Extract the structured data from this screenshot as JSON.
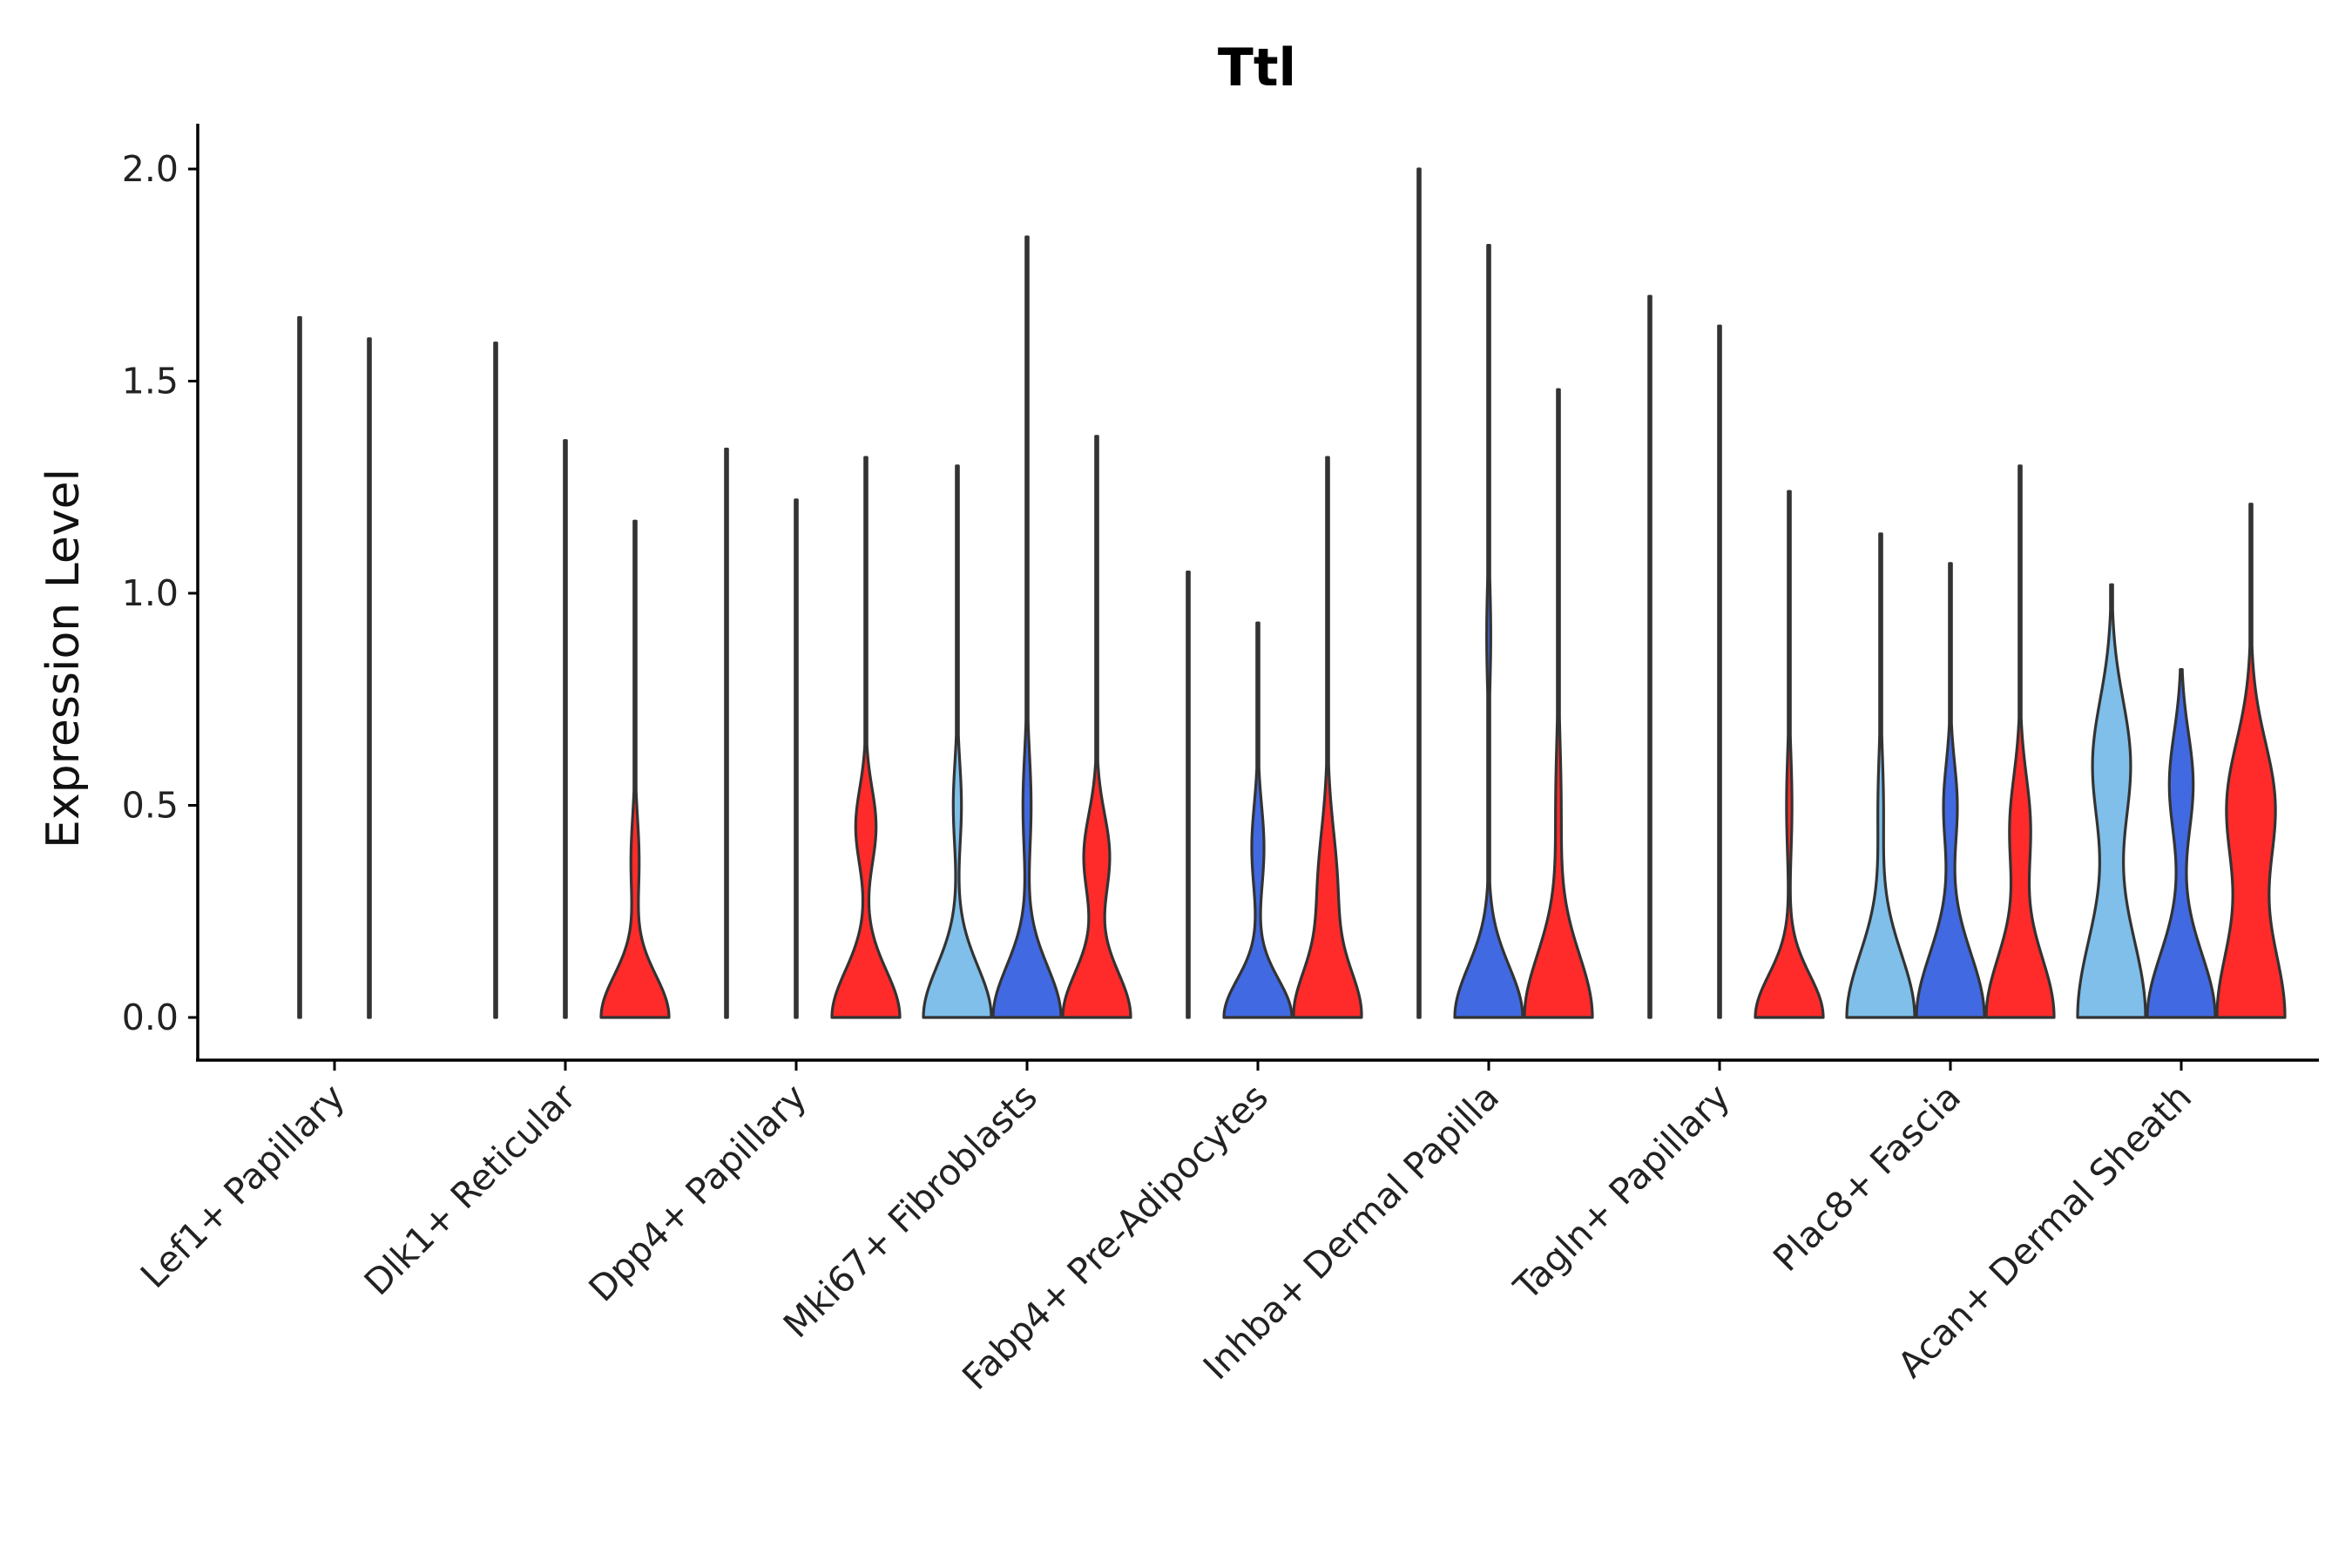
{
  "chart_data": {
    "type": "violin",
    "title": "Ttl",
    "xlabel": "",
    "ylabel": "Expression Level",
    "ylim": [
      -0.1,
      2.1
    ],
    "yticks": [
      "0.0",
      "0.5",
      "1.0",
      "1.5",
      "2.0"
    ],
    "grid": false,
    "legend": "none",
    "series_colors": [
      "#7fbfea",
      "#4169e1",
      "#ff2a2a"
    ],
    "categories": [
      {
        "label": "Lef1+ Papillary",
        "violins": [
          {
            "series": 0,
            "max": 1.65,
            "width": 0.03,
            "peaks": []
          },
          {
            "series": 1,
            "max": 1.6,
            "width": 0.03,
            "peaks": []
          }
        ]
      },
      {
        "label": "Dlk1+ Reticular",
        "violins": [
          {
            "series": 0,
            "max": 1.59,
            "width": 0.02,
            "peaks": []
          },
          {
            "series": 1,
            "max": 1.36,
            "width": 0.02,
            "peaks": []
          },
          {
            "series": 2,
            "max": 1.17,
            "width": 1.0,
            "peaks": [
              [
                0.0,
                0.1,
                1.0
              ],
              [
                0.37,
                0.1,
                0.12
              ]
            ]
          }
        ]
      },
      {
        "label": "Dpp4+ Papillary",
        "violins": [
          {
            "series": 0,
            "max": 1.34,
            "width": 0.02,
            "peaks": []
          },
          {
            "series": 1,
            "max": 1.22,
            "width": 0.02,
            "peaks": []
          },
          {
            "series": 2,
            "max": 1.32,
            "width": 1.0,
            "peaks": [
              [
                0.0,
                0.11,
                1.0
              ],
              [
                0.45,
                0.09,
                0.3
              ]
            ]
          }
        ]
      },
      {
        "label": "Mki67+ Fibroblasts",
        "violins": [
          {
            "series": 0,
            "max": 1.3,
            "width": 1.0,
            "peaks": [
              [
                0.0,
                0.12,
                1.0
              ],
              [
                0.5,
                0.1,
                0.12
              ]
            ]
          },
          {
            "series": 1,
            "max": 1.84,
            "width": 1.0,
            "peaks": [
              [
                0.0,
                0.12,
                1.0
              ],
              [
                0.5,
                0.12,
                0.12
              ]
            ]
          },
          {
            "series": 2,
            "max": 1.37,
            "width": 1.0,
            "peaks": [
              [
                0.0,
                0.11,
                1.0
              ],
              [
                0.38,
                0.1,
                0.38
              ]
            ]
          }
        ]
      },
      {
        "label": "Fabp4+ Pre-Adipocytes",
        "violins": [
          {
            "series": 0,
            "max": 1.05,
            "width": 0.02,
            "peaks": []
          },
          {
            "series": 1,
            "max": 0.93,
            "width": 1.0,
            "peaks": [
              [
                0.0,
                0.09,
                1.0
              ],
              [
                0.4,
                0.1,
                0.18
              ]
            ]
          },
          {
            "series": 2,
            "max": 1.32,
            "width": 1.0,
            "peaks": [
              [
                0.0,
                0.11,
                1.0
              ],
              [
                0.3,
                0.14,
                0.3
              ]
            ]
          }
        ]
      },
      {
        "label": "Inhba+ Dermal Papilla",
        "violins": [
          {
            "series": 0,
            "max": 2.0,
            "width": 0.02,
            "peaks": []
          },
          {
            "series": 1,
            "max": 1.82,
            "width": 1.0,
            "peaks": [
              [
                0.0,
                0.12,
                1.0
              ],
              [
                0.9,
                0.12,
                0.06
              ]
            ]
          },
          {
            "series": 2,
            "max": 1.48,
            "width": 1.0,
            "peaks": [
              [
                0.0,
                0.15,
                1.0
              ],
              [
                0.5,
                0.15,
                0.08
              ]
            ]
          }
        ]
      },
      {
        "label": "Tagln+ Papillary",
        "violins": [
          {
            "series": 0,
            "max": 1.7,
            "width": 0.02,
            "peaks": []
          },
          {
            "series": 1,
            "max": 1.63,
            "width": 0.02,
            "peaks": []
          },
          {
            "series": 2,
            "max": 1.24,
            "width": 1.0,
            "peaks": [
              [
                0.0,
                0.1,
                1.0
              ],
              [
                0.5,
                0.12,
                0.08
              ]
            ]
          }
        ]
      },
      {
        "label": "Plac8+ Fascia",
        "violins": [
          {
            "series": 0,
            "max": 1.14,
            "width": 1.0,
            "peaks": [
              [
                0.0,
                0.15,
                1.0
              ],
              [
                0.5,
                0.12,
                0.08
              ]
            ]
          },
          {
            "series": 1,
            "max": 1.07,
            "width": 1.0,
            "peaks": [
              [
                0.0,
                0.15,
                1.0
              ],
              [
                0.5,
                0.1,
                0.2
              ]
            ]
          },
          {
            "series": 2,
            "max": 1.3,
            "width": 1.0,
            "peaks": [
              [
                0.0,
                0.15,
                1.0
              ],
              [
                0.45,
                0.12,
                0.3
              ]
            ]
          }
        ]
      },
      {
        "label": "Acan+ Dermal Sheath",
        "violins": [
          {
            "series": 0,
            "max": 1.02,
            "width": 1.0,
            "peaks": [
              [
                0.0,
                0.2,
                1.0
              ],
              [
                0.6,
                0.15,
                0.55
              ]
            ]
          },
          {
            "series": 1,
            "max": 0.82,
            "width": 1.0,
            "peaks": [
              [
                0.0,
                0.15,
                1.0
              ],
              [
                0.55,
                0.12,
                0.35
              ]
            ]
          },
          {
            "series": 2,
            "max": 1.21,
            "width": 1.0,
            "peaks": [
              [
                0.0,
                0.18,
                1.0
              ],
              [
                0.5,
                0.15,
                0.7
              ]
            ]
          }
        ]
      }
    ]
  }
}
